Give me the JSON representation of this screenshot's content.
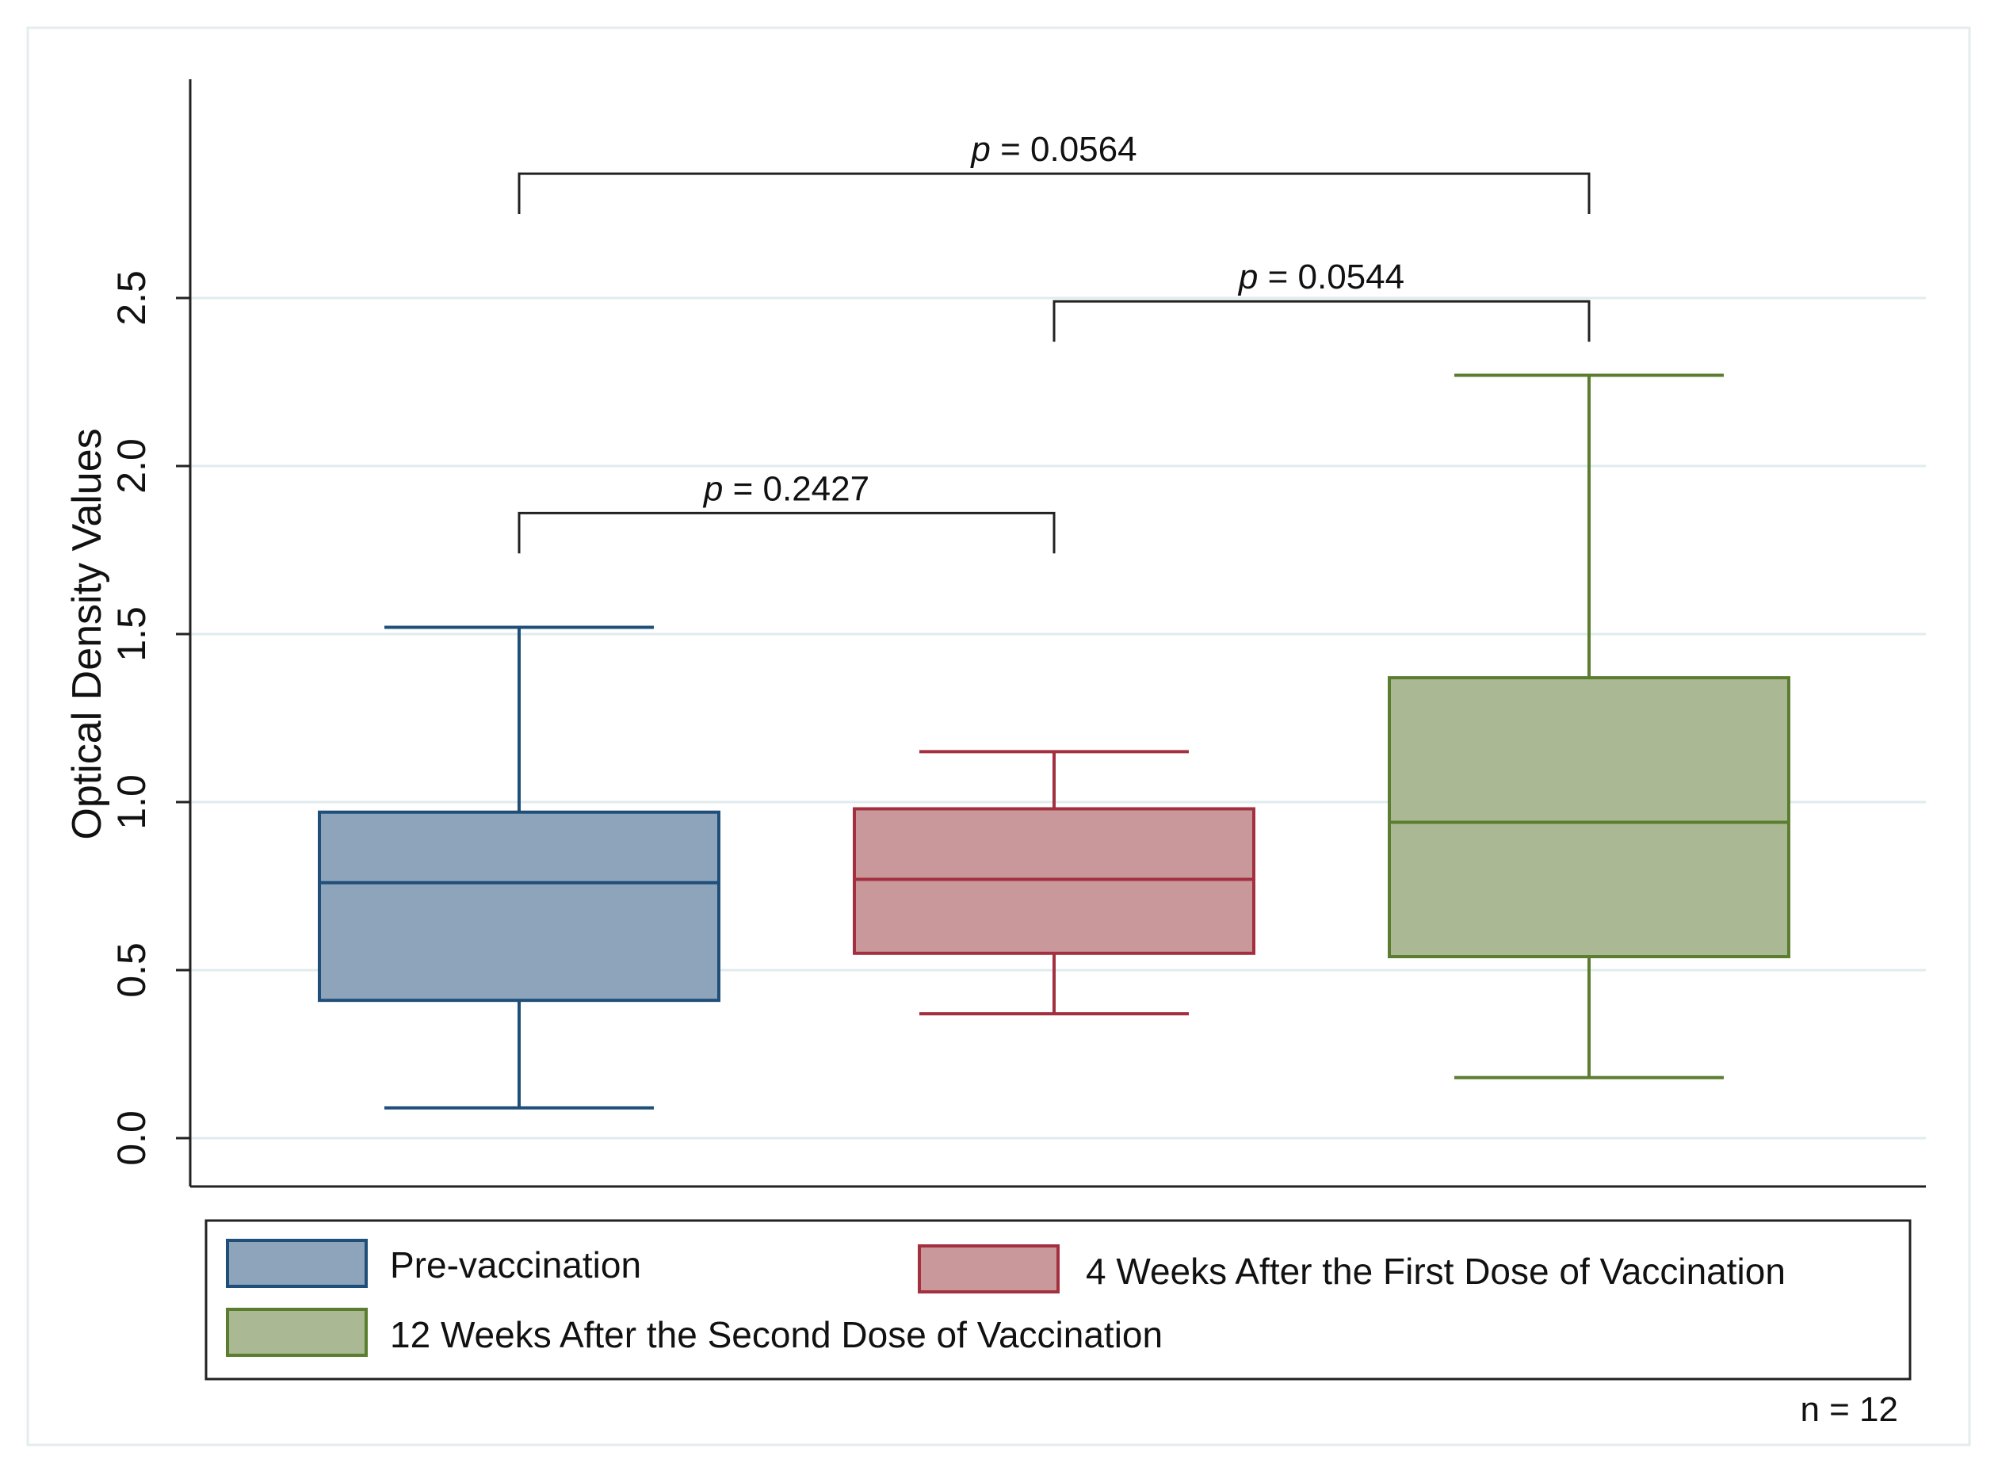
{
  "chart_data": {
    "type": "box",
    "title": "",
    "xlabel": "",
    "ylabel": "Optical Density Values",
    "ylim": [
      -0.15,
      3.1
    ],
    "yticks": [
      0.0,
      0.5,
      1.0,
      1.5,
      2.0,
      2.5
    ],
    "ytick_labels": [
      "0.0",
      "0.5",
      "1.0",
      "1.5",
      "2.0",
      "2.5"
    ],
    "grid": true,
    "series": [
      {
        "name": "Pre-vaccination",
        "color": "#8da4bb",
        "edge": "#1f4e79",
        "min": 0.09,
        "q1": 0.41,
        "median": 0.76,
        "q3": 0.97,
        "max": 1.52
      },
      {
        "name": "4 Weeks After the First Dose of Vaccination",
        "color": "#c9989b",
        "edge": "#a3303e",
        "min": 0.37,
        "q1": 0.55,
        "median": 0.77,
        "q3": 0.98,
        "max": 1.15
      },
      {
        "name": "12 Weeks After the Second Dose of Vaccination",
        "color": "#aab894",
        "edge": "#5a7d2f",
        "min": 0.18,
        "q1": 0.54,
        "median": 0.94,
        "q3": 1.37,
        "max": 2.27
      }
    ],
    "comparisons": [
      {
        "from": 0,
        "to": 1,
        "p_italic": "p",
        "p_value": " = 0.2427",
        "y": 1.86,
        "drop": 0.12
      },
      {
        "from": 1,
        "to": 2,
        "p_italic": "p",
        "p_value": " = 0.0544",
        "y": 2.49,
        "drop": 0.12
      },
      {
        "from": 0,
        "to": 2,
        "p_italic": "p",
        "p_value": " = 0.0564",
        "y": 2.87,
        "drop": 0.12
      }
    ],
    "legend": {
      "position": "bottom",
      "items": [
        "Pre-vaccination",
        "4 Weeks After the First Dose of Vaccination",
        "12 Weeks After the Second Dose of Vaccination"
      ]
    },
    "note": "n = 12"
  }
}
